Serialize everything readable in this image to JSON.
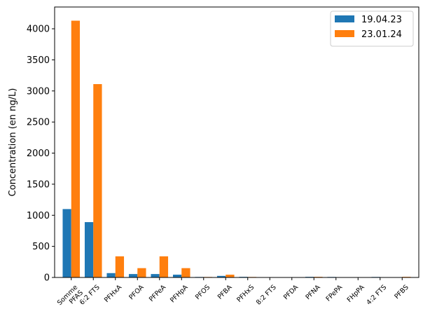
{
  "chart_data": {
    "type": "bar",
    "categories": [
      "Somme\nPFAS",
      "6:2 FTS",
      "PFHxA",
      "PFOA",
      "PFPeA",
      "PFHpA",
      "PFOS",
      "PFBA",
      "PFHxS",
      "8:2 FTS",
      "PFDA",
      "PFNA",
      "FPePA",
      "FHpPA",
      "4:2 FTS",
      "PFBS"
    ],
    "series": [
      {
        "name": "19.04.23",
        "color": "#1f77b4",
        "values": [
          1100,
          890,
          70,
          55,
          55,
          45,
          8,
          25,
          10,
          2,
          2,
          10,
          8,
          2,
          8,
          3
        ]
      },
      {
        "name": "23.01.24",
        "color": "#ff7f0e",
        "values": [
          4130,
          3110,
          340,
          150,
          340,
          150,
          8,
          45,
          8,
          2,
          2,
          10,
          2,
          2,
          2,
          10
        ]
      }
    ],
    "title": "",
    "xlabel": "",
    "ylabel": "Concentration (en ng/L)",
    "ylim": [
      0,
      4350
    ],
    "yticks": [
      0,
      500,
      1000,
      1500,
      2000,
      2500,
      3000,
      3500,
      4000
    ],
    "grid": false,
    "legend_position": "upper right"
  }
}
